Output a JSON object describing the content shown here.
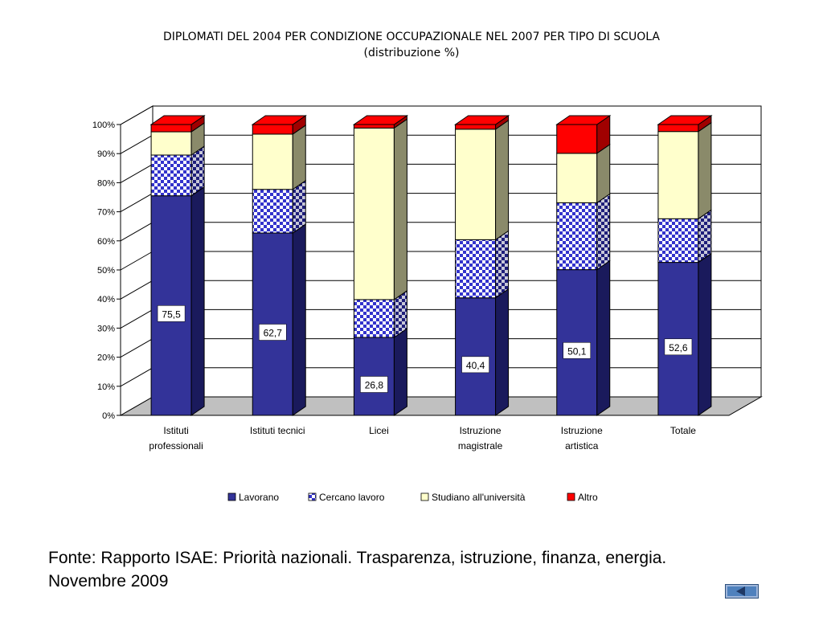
{
  "title_line1": "DIPLOMATI DEL 2004 PER CONDIZIONE OCCUPAZIONALE NEL 2007 PER TIPO DI SCUOLA",
  "title_line2": "(distribuzione %)",
  "source_line1": "Fonte: Rapporto ISAE: Priorità nazionali. Trasparenza, istruzione, finanza, energia.",
  "source_line2": "Novembre 2009",
  "chart_data": {
    "type": "bar",
    "stacked": true,
    "categories": [
      [
        "Istituti",
        "professionali"
      ],
      [
        "Istituti tecnici"
      ],
      [
        "Licei"
      ],
      [
        "Istruzione",
        "magistrale"
      ],
      [
        "Istruzione",
        "artistica"
      ],
      [
        "Totale"
      ]
    ],
    "series": [
      {
        "name": "Lavorano",
        "color": "#333399",
        "values": [
          75.5,
          62.7,
          26.8,
          40.4,
          50.1,
          52.6
        ]
      },
      {
        "name": "Cercano lavoro",
        "color": "#3333cc",
        "pattern": "checker",
        "values": [
          14,
          15,
          13,
          20,
          23,
          15
        ]
      },
      {
        "name": "Studiano all'università",
        "color": "#ffffcc",
        "values": [
          8,
          19,
          59,
          38,
          17,
          30
        ]
      },
      {
        "name": "Altro",
        "color": "#ff0000",
        "values": [
          2.5,
          3.3,
          1.2,
          1.6,
          9.9,
          2.4
        ]
      }
    ],
    "data_labels": [
      "75,5",
      "62,7",
      "26,8",
      "40,4",
      "50,1",
      "52,6"
    ],
    "yticks": [
      "0%",
      "10%",
      "20%",
      "30%",
      "40%",
      "50%",
      "60%",
      "70%",
      "80%",
      "90%",
      "100%"
    ],
    "ylim": [
      0,
      100
    ],
    "grid": true,
    "legend_position": "bottom"
  }
}
